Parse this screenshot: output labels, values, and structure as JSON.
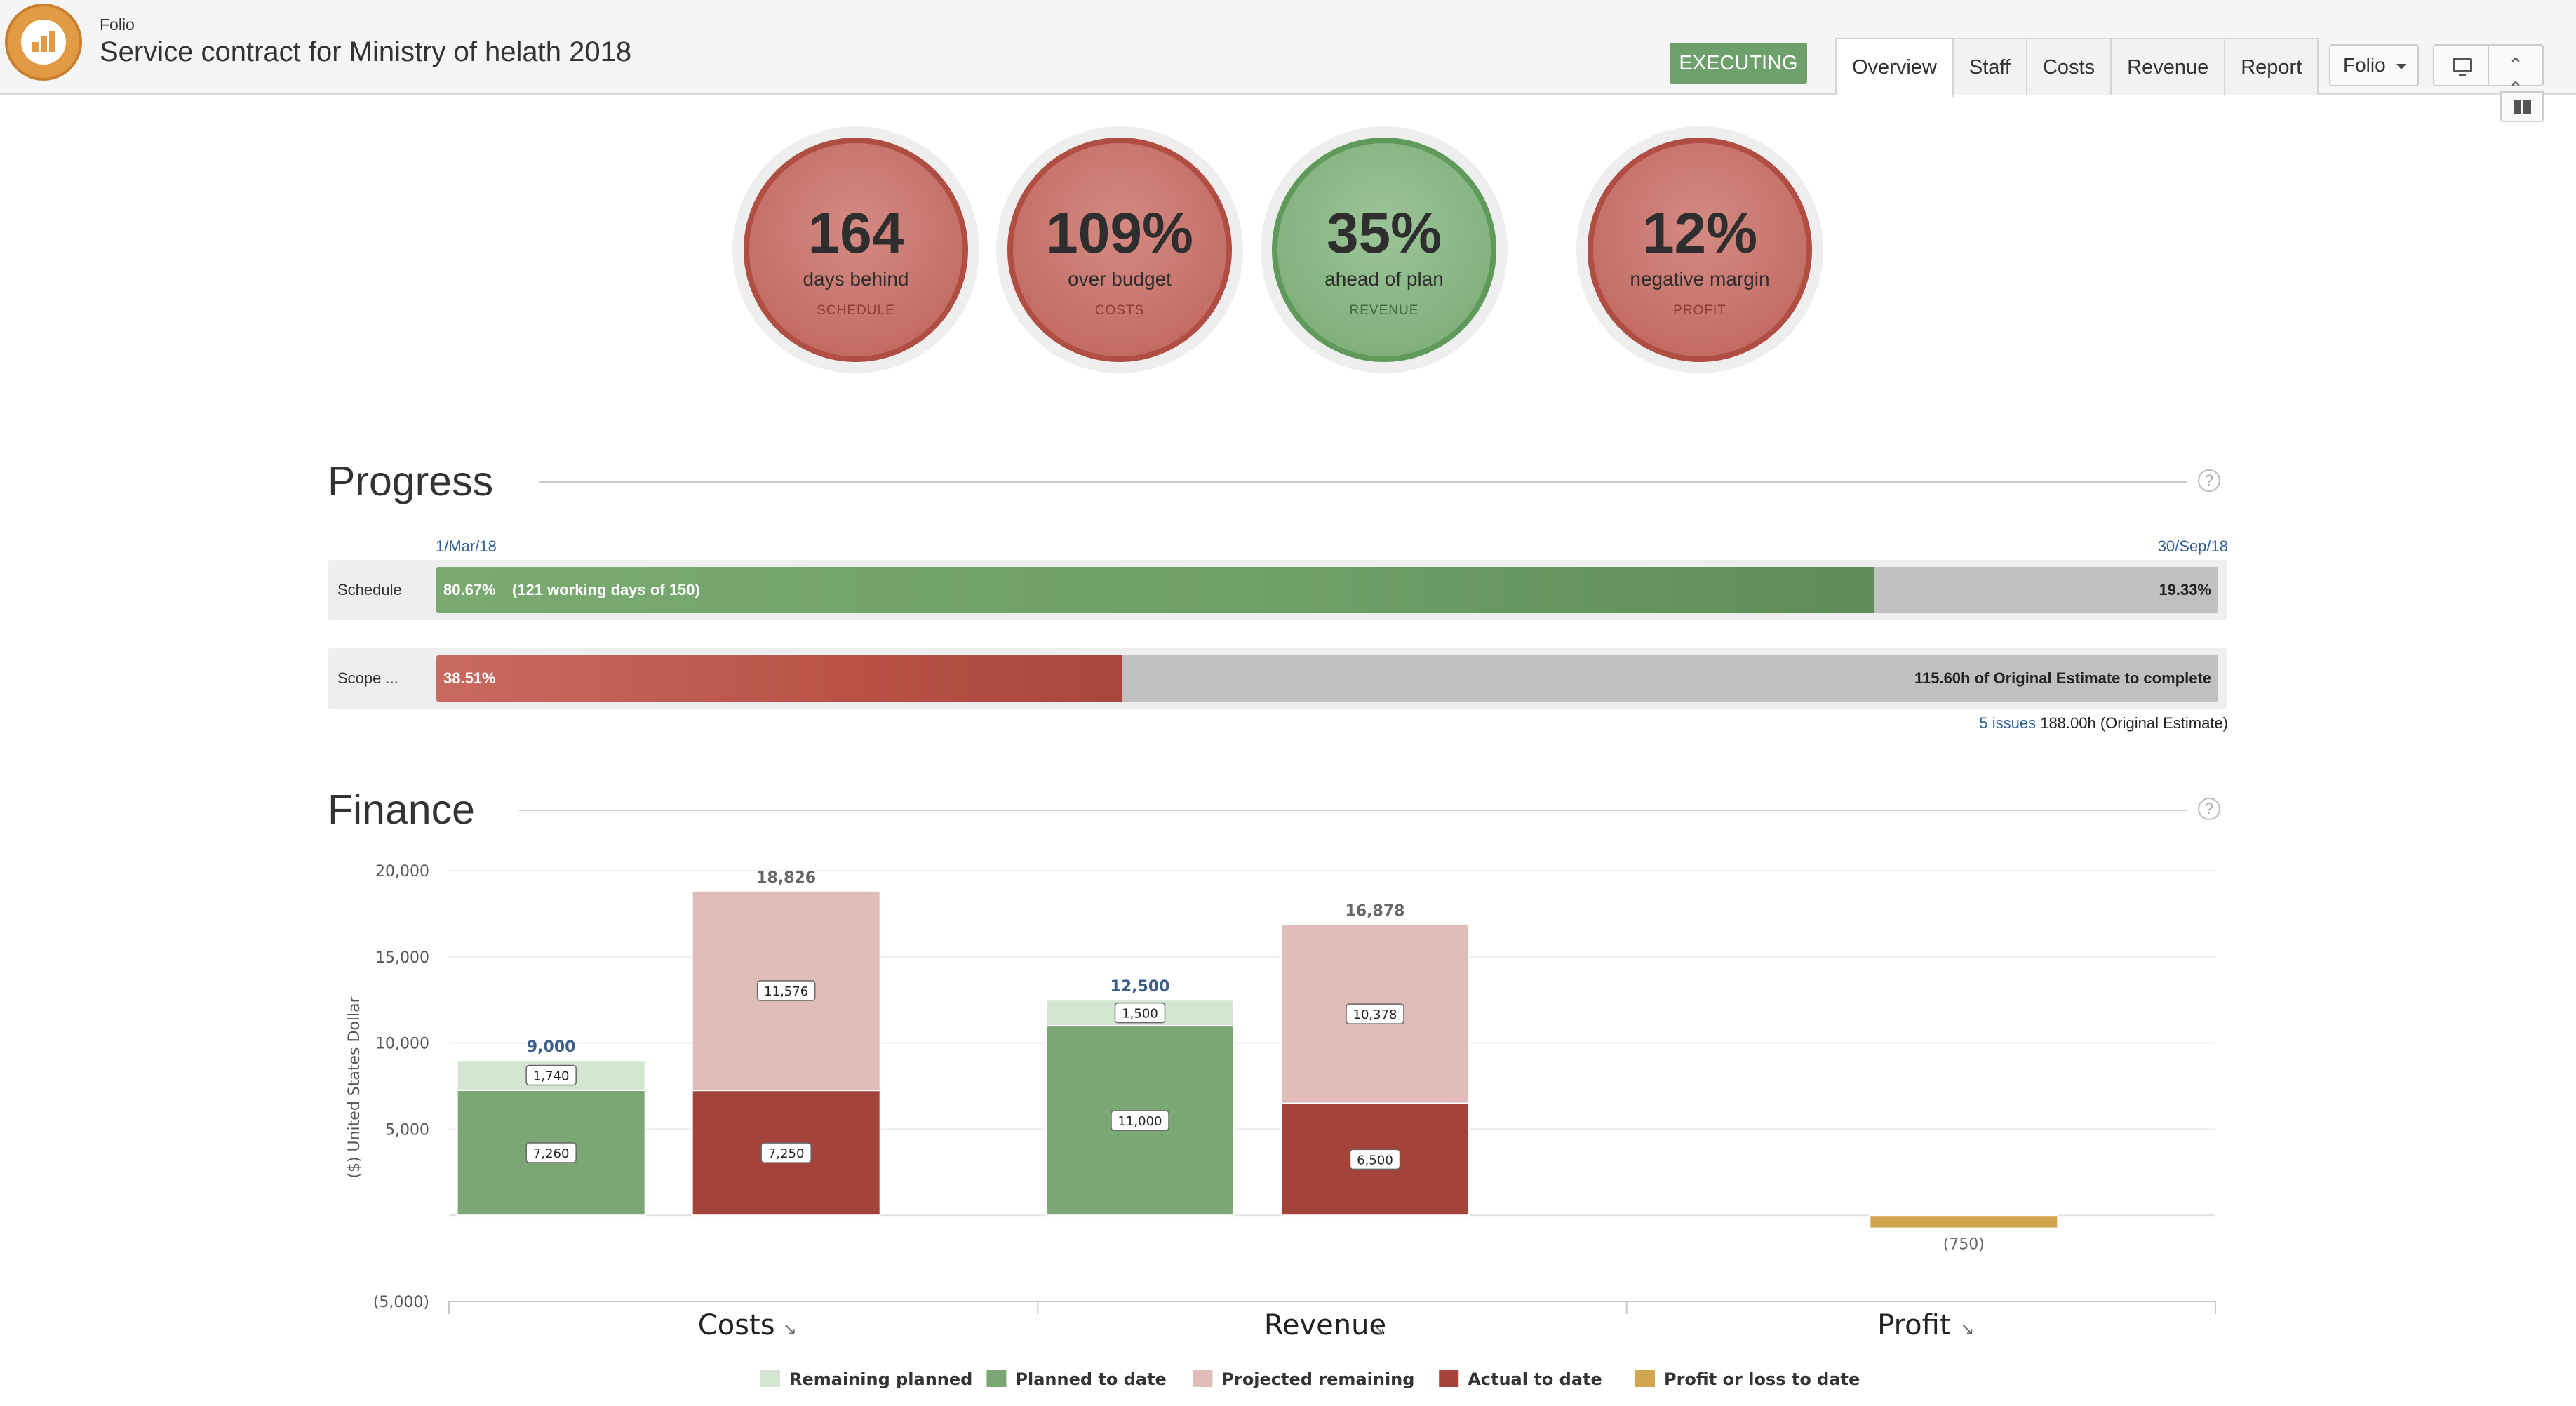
{
  "app": {
    "name": "Folio"
  },
  "project": {
    "title": "Service contract for Ministry of helath 2018",
    "status": "EXECUTING"
  },
  "tabs": [
    {
      "label": "Overview",
      "active": true
    },
    {
      "label": "Staff"
    },
    {
      "label": "Costs"
    },
    {
      "label": "Revenue"
    },
    {
      "label": "Report"
    }
  ],
  "toolbar": {
    "folio_button": "Folio"
  },
  "kpis": [
    {
      "value": "164",
      "label": "days behind",
      "sub": "SCHEDULE",
      "status": "red"
    },
    {
      "value": "109%",
      "label": "over budget",
      "sub": "COSTS",
      "status": "red"
    },
    {
      "value": "35%",
      "label": "ahead of plan",
      "sub": "REVENUE",
      "status": "green"
    },
    {
      "value": "12%",
      "label": "negative margin",
      "sub": "PROFIT",
      "status": "red"
    }
  ],
  "progress": {
    "title": "Progress",
    "start_date": "1/Mar/18",
    "end_date": "30/Sep/18",
    "schedule": {
      "label": "Schedule",
      "percent": 80.67,
      "text": "80.67%",
      "detail": "(121 working days of 150)",
      "remaining": "19.33%"
    },
    "scope": {
      "label": "Scope ...",
      "percent": 38.51,
      "text": "38.51%",
      "remaining": "115.60h of Original Estimate to complete"
    },
    "issues_link": "5 issues",
    "estimate": "188.00h (Original Estimate)"
  },
  "finance": {
    "title": "Finance"
  },
  "chart_data": {
    "type": "bar",
    "stacked": true,
    "ylabel": "($) United States Dollar",
    "ylim": [
      -5000,
      20000
    ],
    "yticks": [
      20000,
      15000,
      10000,
      5000,
      0,
      -5000
    ],
    "ytick_labels": [
      "20,000",
      "15,000",
      "10,000",
      "5,000",
      "",
      "(5,000)"
    ],
    "categories": [
      "Costs",
      "Revenue",
      "Profit"
    ],
    "series": [
      {
        "name": "Remaining planned",
        "color": "#d4e6d2"
      },
      {
        "name": "Planned to date",
        "color": "#7ba774"
      },
      {
        "name": "Projected remaining",
        "color": "#dfbcb8"
      },
      {
        "name": "Actual to date",
        "color": "#a4433a"
      },
      {
        "name": "Profit or loss to date",
        "color": "#d2a64e"
      }
    ],
    "bars": [
      {
        "category": "Costs",
        "slot": 0,
        "total_label": "9,000",
        "total_color": "#3b5f8a",
        "segments": [
          {
            "series": "Planned to date",
            "value": 7260,
            "label": "7,260"
          },
          {
            "series": "Remaining planned",
            "value": 1740,
            "label": "1,740"
          }
        ]
      },
      {
        "category": "Costs",
        "slot": 1,
        "total_label": "18,826",
        "total_color": "#666666",
        "segments": [
          {
            "series": "Actual to date",
            "value": 7250,
            "label": "7,250"
          },
          {
            "series": "Projected remaining",
            "value": 11576,
            "label": "11,576"
          }
        ]
      },
      {
        "category": "Revenue",
        "slot": 0,
        "total_label": "12,500",
        "total_color": "#3b5f8a",
        "segments": [
          {
            "series": "Planned to date",
            "value": 11000,
            "label": "11,000"
          },
          {
            "series": "Remaining planned",
            "value": 1500,
            "label": "1,500"
          }
        ]
      },
      {
        "category": "Revenue",
        "slot": 1,
        "total_label": "16,878",
        "total_color": "#666666",
        "segments": [
          {
            "series": "Actual to date",
            "value": 6500,
            "label": "6,500"
          },
          {
            "series": "Projected remaining",
            "value": 10378,
            "label": "10,378"
          }
        ]
      },
      {
        "category": "Profit",
        "slot": 1,
        "total_label": "(750)",
        "total_color": "#666666",
        "segments": [
          {
            "series": "Profit or loss to date",
            "value": -750,
            "label": ""
          }
        ]
      }
    ]
  }
}
